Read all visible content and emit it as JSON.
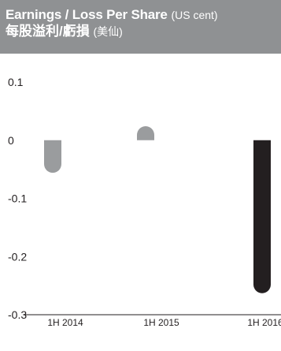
{
  "header": {
    "title_en": "Earnings / Loss Per Share",
    "unit_en": "(US cent)",
    "title_zh": "每股溢利/虧損",
    "unit_zh": "(美仙)"
  },
  "colors": {
    "header_bg": "#8f9193",
    "bar_light": "#9a9c9e",
    "bar_dark": "#231f20",
    "axis": "#231f20"
  },
  "chart_data": {
    "type": "bar",
    "title": "Earnings / Loss Per Share (US cent) 每股溢利/虧損 (美仙)",
    "categories": [
      "1H 2014",
      "1H 2015",
      "1H 2016"
    ],
    "values": [
      -0.056,
      0.024,
      -0.263
    ],
    "bar_colors": [
      "#9a9c9e",
      "#9a9c9e",
      "#231f20"
    ],
    "ylim": [
      -0.3,
      0.1
    ],
    "yticks": [
      "0.1",
      "0",
      "-0.1",
      "-0.2",
      "-0.3"
    ],
    "ytick_values": [
      0.1,
      0,
      -0.1,
      -0.2,
      -0.3
    ],
    "grid": false,
    "legend": "none"
  }
}
